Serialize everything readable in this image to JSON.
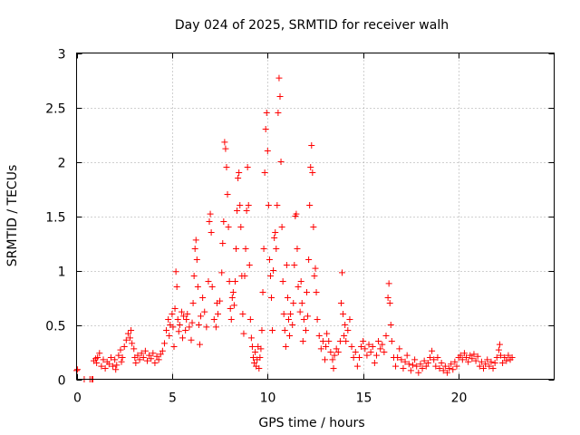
{
  "chart_data": {
    "type": "scatter",
    "title": "Day 024 of 2025, SRMTID for receiver walh",
    "xlabel": "GPS time / hours",
    "ylabel": "SRMTID / TECUs",
    "xlim": [
      0,
      25
    ],
    "ylim": [
      0,
      3
    ],
    "xticks": [
      0,
      5,
      10,
      15,
      20
    ],
    "xtick_labels": [
      "0",
      "5",
      "10",
      "15",
      "20"
    ],
    "yticks": [
      0,
      0.5,
      1,
      1.5,
      2,
      2.5,
      3
    ],
    "ytick_labels": [
      "0",
      "0.5",
      "1",
      "1.5",
      "2",
      "2.5",
      "3"
    ],
    "grid": true,
    "marker": "+",
    "color": "#ff0000",
    "series": [
      {
        "name": "SRMTID",
        "points": [
          [
            0.0,
            0.08
          ],
          [
            0.05,
            0.09
          ],
          [
            0.4,
            0.0
          ],
          [
            0.7,
            0.0
          ],
          [
            0.8,
            0.0
          ],
          [
            0.85,
            0.0
          ],
          [
            0.9,
            0.17
          ],
          [
            1.0,
            0.19
          ],
          [
            1.05,
            0.15
          ],
          [
            1.1,
            0.2
          ],
          [
            1.2,
            0.24
          ],
          [
            1.3,
            0.12
          ],
          [
            1.4,
            0.18
          ],
          [
            1.5,
            0.1
          ],
          [
            1.6,
            0.16
          ],
          [
            1.7,
            0.14
          ],
          [
            1.8,
            0.2
          ],
          [
            1.9,
            0.12
          ],
          [
            2.0,
            0.18
          ],
          [
            2.05,
            0.09
          ],
          [
            2.1,
            0.13
          ],
          [
            2.2,
            0.22
          ],
          [
            2.3,
            0.27
          ],
          [
            2.35,
            0.16
          ],
          [
            2.4,
            0.2
          ],
          [
            2.5,
            0.3
          ],
          [
            2.6,
            0.36
          ],
          [
            2.7,
            0.42
          ],
          [
            2.8,
            0.38
          ],
          [
            2.85,
            0.45
          ],
          [
            2.9,
            0.33
          ],
          [
            3.0,
            0.28
          ],
          [
            3.05,
            0.2
          ],
          [
            3.1,
            0.15
          ],
          [
            3.2,
            0.22
          ],
          [
            3.3,
            0.18
          ],
          [
            3.4,
            0.24
          ],
          [
            3.5,
            0.2
          ],
          [
            3.6,
            0.26
          ],
          [
            3.7,
            0.17
          ],
          [
            3.8,
            0.22
          ],
          [
            3.9,
            0.19
          ],
          [
            4.0,
            0.24
          ],
          [
            4.1,
            0.15
          ],
          [
            4.2,
            0.21
          ],
          [
            4.3,
            0.18
          ],
          [
            4.4,
            0.23
          ],
          [
            4.5,
            0.26
          ],
          [
            4.6,
            0.33
          ],
          [
            4.7,
            0.45
          ],
          [
            4.8,
            0.55
          ],
          [
            4.85,
            0.4
          ],
          [
            4.9,
            0.5
          ],
          [
            5.0,
            0.6
          ],
          [
            5.05,
            0.48
          ],
          [
            5.1,
            0.3
          ],
          [
            5.15,
            0.65
          ],
          [
            5.2,
            0.99
          ],
          [
            5.25,
            0.85
          ],
          [
            5.3,
            0.55
          ],
          [
            5.35,
            0.44
          ],
          [
            5.4,
            0.5
          ],
          [
            5.5,
            0.62
          ],
          [
            5.55,
            0.38
          ],
          [
            5.6,
            0.58
          ],
          [
            5.7,
            0.45
          ],
          [
            5.75,
            0.55
          ],
          [
            5.8,
            0.6
          ],
          [
            5.9,
            0.48
          ],
          [
            6.0,
            0.36
          ],
          [
            6.05,
            0.52
          ],
          [
            6.1,
            0.7
          ],
          [
            6.15,
            0.95
          ],
          [
            6.2,
            1.2
          ],
          [
            6.25,
            1.28
          ],
          [
            6.3,
            1.1
          ],
          [
            6.35,
            0.85
          ],
          [
            6.4,
            0.5
          ],
          [
            6.45,
            0.32
          ],
          [
            6.5,
            0.58
          ],
          [
            6.6,
            0.75
          ],
          [
            6.7,
            0.62
          ],
          [
            6.8,
            0.48
          ],
          [
            6.9,
            0.9
          ],
          [
            6.95,
            1.45
          ],
          [
            7.0,
            1.52
          ],
          [
            7.05,
            1.35
          ],
          [
            7.1,
            0.85
          ],
          [
            7.2,
            0.55
          ],
          [
            7.3,
            0.48
          ],
          [
            7.35,
            0.7
          ],
          [
            7.4,
            0.6
          ],
          [
            7.5,
            0.72
          ],
          [
            7.6,
            0.98
          ],
          [
            7.65,
            1.25
          ],
          [
            7.7,
            1.45
          ],
          [
            7.75,
            2.18
          ],
          [
            7.8,
            2.12
          ],
          [
            7.85,
            1.95
          ],
          [
            7.9,
            1.7
          ],
          [
            7.95,
            1.4
          ],
          [
            8.0,
            0.9
          ],
          [
            8.05,
            0.65
          ],
          [
            8.1,
            0.55
          ],
          [
            8.15,
            0.75
          ],
          [
            8.2,
            0.8
          ],
          [
            8.25,
            0.68
          ],
          [
            8.3,
            0.9
          ],
          [
            8.35,
            1.2
          ],
          [
            8.4,
            1.55
          ],
          [
            8.45,
            1.85
          ],
          [
            8.5,
            1.9
          ],
          [
            8.55,
            1.6
          ],
          [
            8.6,
            1.4
          ],
          [
            8.65,
            0.95
          ],
          [
            8.7,
            0.6
          ],
          [
            8.75,
            0.42
          ],
          [
            8.8,
            0.95
          ],
          [
            8.85,
            1.2
          ],
          [
            8.9,
            1.55
          ],
          [
            8.95,
            1.95
          ],
          [
            9.0,
            1.6
          ],
          [
            9.05,
            1.05
          ],
          [
            9.1,
            0.55
          ],
          [
            9.15,
            0.38
          ],
          [
            9.2,
            0.3
          ],
          [
            9.25,
            0.2
          ],
          [
            9.3,
            0.15
          ],
          [
            9.35,
            0.25
          ],
          [
            9.4,
            0.12
          ],
          [
            9.45,
            0.18
          ],
          [
            9.5,
            0.3
          ],
          [
            9.55,
            0.1
          ],
          [
            9.6,
            0.2
          ],
          [
            9.65,
            0.28
          ],
          [
            9.7,
            0.45
          ],
          [
            9.75,
            0.8
          ],
          [
            9.8,
            1.2
          ],
          [
            9.85,
            1.9
          ],
          [
            9.9,
            2.3
          ],
          [
            9.95,
            2.45
          ],
          [
            10.0,
            2.1
          ],
          [
            10.05,
            1.6
          ],
          [
            10.1,
            1.1
          ],
          [
            10.15,
            0.95
          ],
          [
            10.2,
            0.75
          ],
          [
            10.25,
            0.45
          ],
          [
            10.3,
            1.0
          ],
          [
            10.35,
            1.3
          ],
          [
            10.4,
            1.35
          ],
          [
            10.45,
            1.2
          ],
          [
            10.5,
            1.6
          ],
          [
            10.55,
            2.45
          ],
          [
            10.6,
            2.77
          ],
          [
            10.65,
            2.6
          ],
          [
            10.7,
            2.0
          ],
          [
            10.75,
            1.4
          ],
          [
            10.8,
            0.9
          ],
          [
            10.85,
            0.6
          ],
          [
            10.9,
            0.45
          ],
          [
            10.95,
            0.3
          ],
          [
            11.0,
            1.05
          ],
          [
            11.05,
            0.75
          ],
          [
            11.1,
            0.55
          ],
          [
            11.15,
            0.4
          ],
          [
            11.2,
            0.6
          ],
          [
            11.3,
            0.5
          ],
          [
            11.35,
            0.7
          ],
          [
            11.4,
            1.05
          ],
          [
            11.45,
            1.5
          ],
          [
            11.5,
            1.52
          ],
          [
            11.55,
            1.2
          ],
          [
            11.6,
            0.85
          ],
          [
            11.7,
            0.62
          ],
          [
            11.75,
            0.9
          ],
          [
            11.8,
            0.7
          ],
          [
            11.85,
            0.35
          ],
          [
            11.9,
            0.55
          ],
          [
            12.0,
            0.45
          ],
          [
            12.05,
            0.8
          ],
          [
            12.1,
            0.58
          ],
          [
            12.15,
            1.1
          ],
          [
            12.2,
            1.6
          ],
          [
            12.25,
            1.95
          ],
          [
            12.3,
            2.15
          ],
          [
            12.35,
            1.9
          ],
          [
            12.4,
            1.4
          ],
          [
            12.45,
            0.95
          ],
          [
            12.5,
            1.02
          ],
          [
            12.55,
            0.8
          ],
          [
            12.6,
            0.55
          ],
          [
            12.7,
            0.4
          ],
          [
            12.8,
            0.28
          ],
          [
            12.9,
            0.35
          ],
          [
            13.0,
            0.18
          ],
          [
            13.05,
            0.3
          ],
          [
            13.1,
            0.42
          ],
          [
            13.2,
            0.35
          ],
          [
            13.3,
            0.25
          ],
          [
            13.4,
            0.18
          ],
          [
            13.45,
            0.1
          ],
          [
            13.5,
            0.22
          ],
          [
            13.6,
            0.28
          ],
          [
            13.7,
            0.25
          ],
          [
            13.8,
            0.35
          ],
          [
            13.85,
            0.7
          ],
          [
            13.9,
            0.98
          ],
          [
            13.95,
            0.6
          ],
          [
            14.0,
            0.4
          ],
          [
            14.05,
            0.5
          ],
          [
            14.1,
            0.35
          ],
          [
            14.2,
            0.45
          ],
          [
            14.3,
            0.55
          ],
          [
            14.4,
            0.3
          ],
          [
            14.5,
            0.2
          ],
          [
            14.6,
            0.25
          ],
          [
            14.7,
            0.12
          ],
          [
            14.8,
            0.2
          ],
          [
            14.9,
            0.3
          ],
          [
            15.0,
            0.35
          ],
          [
            15.1,
            0.28
          ],
          [
            15.2,
            0.22
          ],
          [
            15.3,
            0.32
          ],
          [
            15.4,
            0.25
          ],
          [
            15.5,
            0.3
          ],
          [
            15.6,
            0.15
          ],
          [
            15.7,
            0.22
          ],
          [
            15.8,
            0.35
          ],
          [
            15.9,
            0.28
          ],
          [
            16.0,
            0.32
          ],
          [
            16.1,
            0.25
          ],
          [
            16.2,
            0.4
          ],
          [
            16.3,
            0.75
          ],
          [
            16.35,
            0.88
          ],
          [
            16.4,
            0.7
          ],
          [
            16.45,
            0.5
          ],
          [
            16.5,
            0.35
          ],
          [
            16.6,
            0.2
          ],
          [
            16.7,
            0.12
          ],
          [
            16.8,
            0.2
          ],
          [
            16.9,
            0.28
          ],
          [
            17.0,
            0.18
          ],
          [
            17.1,
            0.1
          ],
          [
            17.2,
            0.16
          ],
          [
            17.3,
            0.22
          ],
          [
            17.4,
            0.14
          ],
          [
            17.5,
            0.08
          ],
          [
            17.6,
            0.13
          ],
          [
            17.7,
            0.18
          ],
          [
            17.8,
            0.12
          ],
          [
            17.9,
            0.06
          ],
          [
            18.0,
            0.14
          ],
          [
            18.1,
            0.1
          ],
          [
            18.2,
            0.17
          ],
          [
            18.3,
            0.12
          ],
          [
            18.4,
            0.15
          ],
          [
            18.5,
            0.2
          ],
          [
            18.6,
            0.26
          ],
          [
            18.7,
            0.18
          ],
          [
            18.8,
            0.12
          ],
          [
            18.9,
            0.2
          ],
          [
            19.0,
            0.1
          ],
          [
            19.1,
            0.15
          ],
          [
            19.2,
            0.08
          ],
          [
            19.3,
            0.12
          ],
          [
            19.4,
            0.06
          ],
          [
            19.5,
            0.1
          ],
          [
            19.6,
            0.14
          ],
          [
            19.7,
            0.09
          ],
          [
            19.8,
            0.16
          ],
          [
            19.9,
            0.12
          ],
          [
            20.0,
            0.2
          ],
          [
            20.1,
            0.22
          ],
          [
            20.2,
            0.18
          ],
          [
            20.3,
            0.24
          ],
          [
            20.4,
            0.2
          ],
          [
            20.5,
            0.16
          ],
          [
            20.6,
            0.22
          ],
          [
            20.7,
            0.19
          ],
          [
            20.8,
            0.23
          ],
          [
            20.9,
            0.17
          ],
          [
            21.0,
            0.21
          ],
          [
            21.1,
            0.12
          ],
          [
            21.2,
            0.16
          ],
          [
            21.3,
            0.1
          ],
          [
            21.4,
            0.14
          ],
          [
            21.5,
            0.18
          ],
          [
            21.6,
            0.12
          ],
          [
            21.7,
            0.16
          ],
          [
            21.8,
            0.1
          ],
          [
            21.9,
            0.15
          ],
          [
            22.0,
            0.2
          ],
          [
            22.1,
            0.27
          ],
          [
            22.15,
            0.32
          ],
          [
            22.2,
            0.22
          ],
          [
            22.3,
            0.15
          ],
          [
            22.4,
            0.2
          ],
          [
            22.5,
            0.17
          ],
          [
            22.6,
            0.22
          ],
          [
            22.7,
            0.18
          ],
          [
            22.8,
            0.2
          ]
        ]
      }
    ]
  }
}
